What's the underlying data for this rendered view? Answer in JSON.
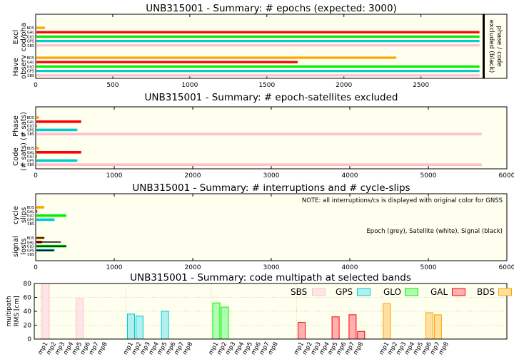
{
  "colors": {
    "BDS": "#ffa500",
    "GAL": "#ff0000",
    "GLO": "#00ee00",
    "GPS": "#00cccc",
    "SBS": "#ffc0cb",
    "panel_bg": "#fffff0",
    "grid": "#c8c8a0"
  },
  "chart_data": [
    {
      "type": "bar",
      "orientation": "horizontal",
      "title": "UNB315001 - Summary: # epochs (expected: 3000)",
      "xlim": [
        0,
        2900
      ],
      "xticks": [
        0,
        500,
        1000,
        1500,
        2000,
        2500
      ],
      "groups": [
        {
          "label": [
            "Excl",
            "cod/pha"
          ],
          "systems": [
            "BDS",
            "GAL",
            "GLO",
            "GPS",
            "SBS"
          ],
          "values": [
            60,
            2880,
            2880,
            2880,
            2880
          ]
        },
        {
          "label": [
            "Have",
            "observ"
          ],
          "systems": [
            "BDS",
            "GAL",
            "GLO",
            "GPS",
            "SBS"
          ],
          "values": [
            2340,
            1700,
            2880,
            2880,
            2880
          ]
        }
      ],
      "annotation": [
        "phase / code",
        "excluded (black)"
      ]
    },
    {
      "type": "bar",
      "orientation": "horizontal",
      "title": "UNB315001 - Summary: # epoch-satellites excluded",
      "xlim": [
        0,
        6000
      ],
      "xticks": [
        0,
        1000,
        2000,
        3000,
        4000,
        5000,
        6000
      ],
      "groups": [
        {
          "label": [
            "Phase",
            "(# sats)"
          ],
          "systems": [
            "BDS",
            "GAL",
            "GLO",
            "GPS",
            "SBS"
          ],
          "values": [
            40,
            580,
            15,
            530,
            5680
          ]
        },
        {
          "label": [
            "Code",
            "(# sats)"
          ],
          "systems": [
            "BDS",
            "GAL",
            "GLO",
            "GPS",
            "SBS"
          ],
          "values": [
            40,
            580,
            15,
            530,
            5680
          ]
        }
      ]
    },
    {
      "type": "bar",
      "orientation": "horizontal",
      "title": "UNB315001 - Summary: # interruptions and # cycle-slips",
      "xlim": [
        0,
        6000
      ],
      "xticks": [
        0,
        1000,
        2000,
        3000,
        4000,
        5000,
        6000
      ],
      "notes": [
        "NOTE: all interruptions/cs is displayed with original color for GNSS",
        "Epoch (grey), Satellite (white), Signal (black)"
      ],
      "groups": [
        {
          "label": [
            "cycle",
            "slips"
          ],
          "systems": [
            "BDS",
            "GAL",
            "GLO",
            "GPS",
            "SBS"
          ],
          "values": [
            110,
            20,
            390,
            240,
            0
          ]
        },
        {
          "label": [
            "signal",
            "losts"
          ],
          "systems": [
            "BDS",
            "GAL",
            "GLO",
            "GPS",
            "SBS"
          ],
          "values": [
            110,
            80,
            390,
            240,
            0
          ],
          "signal": [
            110,
            320,
            390,
            230,
            0
          ]
        }
      ]
    },
    {
      "type": "bar",
      "title": "UNB315001 - Summary: code multipath at selected bands",
      "ylabel": [
        "multipath",
        "RMS [cm]"
      ],
      "ylim": [
        0,
        80
      ],
      "yticks": [
        0,
        20,
        40,
        60,
        80
      ],
      "categories": [
        "mp1",
        "mp2",
        "mp3",
        "mp4",
        "mp5",
        "mp6",
        "mp7",
        "mp8"
      ],
      "series": [
        {
          "name": "SBS",
          "values": [
            80,
            0,
            0,
            0,
            58,
            0,
            0,
            0
          ]
        },
        {
          "name": "GPS",
          "values": [
            36,
            33,
            0,
            0,
            40,
            0,
            0,
            0
          ]
        },
        {
          "name": "GLO",
          "values": [
            52,
            46,
            0,
            0,
            0,
            0,
            0,
            0
          ]
        },
        {
          "name": "GAL",
          "values": [
            24,
            0,
            0,
            0,
            32,
            0,
            35,
            11
          ]
        },
        {
          "name": "BDS",
          "values": [
            51,
            0,
            0,
            0,
            0,
            38,
            35,
            0
          ]
        }
      ],
      "legend": [
        "SBS",
        "GPS",
        "GLO",
        "GAL",
        "BDS"
      ]
    }
  ]
}
